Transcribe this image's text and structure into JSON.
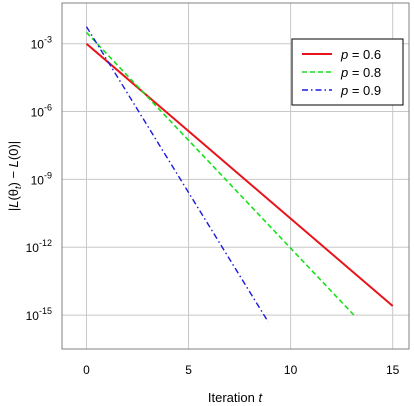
{
  "chart_data": {
    "type": "line",
    "title": "",
    "xlabel_prefix": "Iteration",
    "xlabel_var": "t",
    "ylabel": "|L(θ_t) − L(0)|",
    "xlim": [
      -1.2,
      15.8
    ],
    "ylim_log10": [
      -16.5,
      -1.2
    ],
    "yscale": "log",
    "grid": true,
    "legend_position": "top-right",
    "x_ticks": [
      {
        "value": 0,
        "label": "0"
      },
      {
        "value": 5,
        "label": "5"
      },
      {
        "value": 10,
        "label": "10"
      },
      {
        "value": 15,
        "label": "15"
      }
    ],
    "y_ticks": [
      {
        "log10": -3,
        "base": "10",
        "exp": "-3"
      },
      {
        "log10": -6,
        "base": "10",
        "exp": "-6"
      },
      {
        "log10": -9,
        "base": "10",
        "exp": "-9"
      },
      {
        "log10": -12,
        "base": "10",
        "exp": "-12"
      },
      {
        "log10": -15,
        "base": "10",
        "exp": "-15"
      }
    ],
    "series": [
      {
        "name": "p = 0.6",
        "var": "p",
        "val": "0.6",
        "color": "#e8141c",
        "dash": "",
        "width": 2,
        "x": [
          0,
          15
        ],
        "y_log10": [
          -3.0,
          -14.6
        ]
      },
      {
        "name": "p = 0.8",
        "var": "p",
        "val": "0.8",
        "color": "#17e01c",
        "dash": "5,3",
        "width": 1.6,
        "x": [
          0,
          13.1
        ],
        "y_log10": [
          -2.5,
          -15.0
        ]
      },
      {
        "name": "p = 0.9",
        "var": "p",
        "val": "0.9",
        "color": "#1a1adf",
        "dash": "6,3,1.5,3",
        "width": 1.4,
        "x": [
          0,
          8.9
        ],
        "y_log10": [
          -2.25,
          -15.3
        ]
      }
    ]
  }
}
